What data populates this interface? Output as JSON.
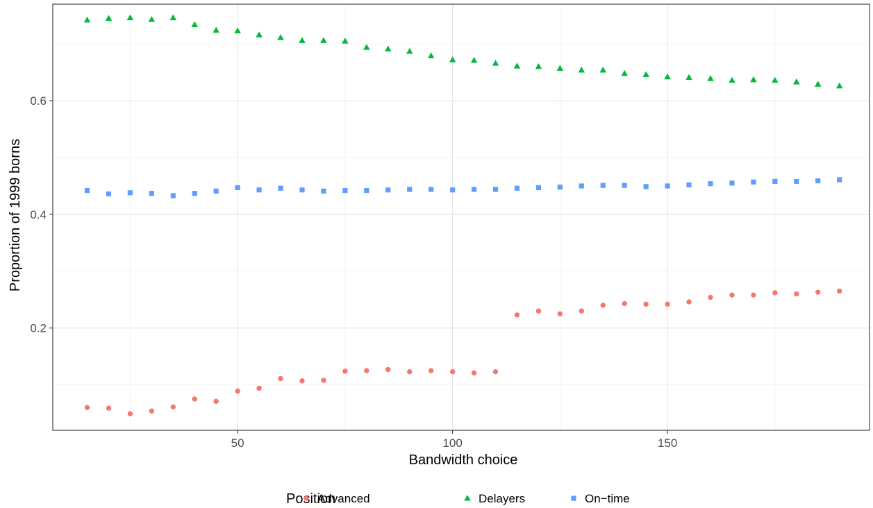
{
  "chart_data": {
    "type": "scatter",
    "title": "",
    "xlabel": "Bandwidth choice",
    "ylabel": "Proportion of 1999 borns",
    "xlim": [
      7,
      197
    ],
    "ylim": [
      0.02,
      0.77
    ],
    "x_ticks": [
      50,
      100,
      150
    ],
    "y_ticks": [
      0.2,
      0.4,
      0.6
    ],
    "x_tick_labels": [
      "50",
      "100",
      "150"
    ],
    "y_tick_labels": [
      "0.2",
      "0.4",
      "0.6"
    ],
    "grid": true,
    "legend": {
      "title": "Position",
      "position": "bottom"
    },
    "x": [
      15,
      20,
      25,
      30,
      35,
      40,
      45,
      50,
      55,
      60,
      65,
      70,
      75,
      80,
      85,
      90,
      95,
      100,
      105,
      110,
      115,
      120,
      125,
      130,
      135,
      140,
      145,
      150,
      155,
      160,
      165,
      170,
      175,
      180,
      185,
      190
    ],
    "series": [
      {
        "name": "Advanced",
        "color": "#F8766D",
        "shape": "circle",
        "values": [
          0.06,
          0.059,
          0.049,
          0.054,
          0.061,
          0.075,
          0.071,
          0.089,
          0.094,
          0.111,
          0.107,
          0.108,
          0.124,
          0.125,
          0.127,
          0.123,
          0.125,
          0.123,
          0.121,
          0.123,
          0.223,
          0.23,
          0.225,
          0.23,
          0.24,
          0.243,
          0.242,
          0.242,
          0.246,
          0.254,
          0.258,
          0.258,
          0.262,
          0.26,
          0.263,
          0.265
        ]
      },
      {
        "name": "Delayers",
        "color": "#00BA38",
        "shape": "triangle",
        "values": [
          0.742,
          0.745,
          0.746,
          0.743,
          0.746,
          0.734,
          0.724,
          0.723,
          0.716,
          0.711,
          0.706,
          0.706,
          0.705,
          0.694,
          0.691,
          0.687,
          0.679,
          0.672,
          0.671,
          0.666,
          0.661,
          0.66,
          0.657,
          0.654,
          0.654,
          0.648,
          0.646,
          0.642,
          0.641,
          0.639,
          0.636,
          0.637,
          0.636,
          0.633,
          0.629,
          0.626
        ]
      },
      {
        "name": "On−time",
        "color": "#619CFF",
        "shape": "square",
        "values": [
          0.442,
          0.436,
          0.438,
          0.437,
          0.433,
          0.437,
          0.441,
          0.447,
          0.443,
          0.446,
          0.443,
          0.441,
          0.442,
          0.442,
          0.443,
          0.444,
          0.444,
          0.443,
          0.444,
          0.444,
          0.446,
          0.447,
          0.448,
          0.45,
          0.451,
          0.451,
          0.449,
          0.45,
          0.452,
          0.454,
          0.455,
          0.457,
          0.458,
          0.458,
          0.459,
          0.461
        ]
      }
    ]
  }
}
